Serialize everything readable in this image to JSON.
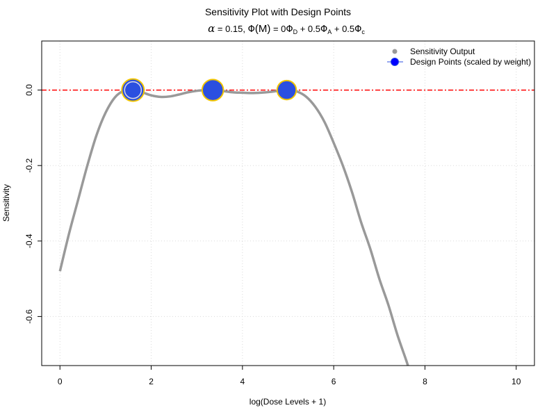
{
  "chart_data": {
    "type": "line",
    "title": "Sensitivity Plot with Design Points",
    "subtitle": {
      "alpha_symbol": "α",
      "alpha_value": " = 0.15, ",
      "phi": "Φ",
      "m_arg": "(M)",
      "eq": " = 0",
      "w_a": " + 0.5",
      "w_c": " + 0.5",
      "sub_d": "D",
      "sub_a": "A",
      "sub_c": "c"
    },
    "xlabel": "log(Dose Levels + 1)",
    "ylabel": "Sensitivity",
    "xlim": [
      -0.4,
      10.4
    ],
    "ylim": [
      -0.73,
      0.13
    ],
    "x_ticks": [
      0,
      2,
      4,
      6,
      8,
      10
    ],
    "x_tick_labels": [
      "0",
      "2",
      "4",
      "6",
      "8",
      "10"
    ],
    "y_ticks": [
      -0.6,
      -0.4,
      -0.2,
      0.0
    ],
    "y_tick_labels": [
      "-0.6",
      "-0.4",
      "-0.2",
      "0.0"
    ],
    "grid": true,
    "reference_line": {
      "y": 0,
      "color": "#ff0000",
      "style": "dashed"
    },
    "series": [
      {
        "name": "Sensitivity Output",
        "color": "#999999",
        "x": [
          0,
          0.2,
          0.4,
          0.6,
          0.8,
          1.0,
          1.2,
          1.4,
          1.6,
          1.8,
          2.0,
          2.2,
          2.4,
          2.6,
          2.8,
          3.0,
          3.2,
          3.4,
          3.6,
          3.8,
          4.0,
          4.2,
          4.4,
          4.6,
          4.8,
          5.0,
          5.2,
          5.4,
          5.6,
          5.8,
          6.0,
          6.2,
          6.4,
          6.6,
          6.8,
          7.0,
          7.2,
          7.4,
          7.6,
          7.7
        ],
        "y": [
          -0.48,
          -0.38,
          -0.29,
          -0.2,
          -0.12,
          -0.06,
          -0.02,
          -0.002,
          0.0,
          -0.006,
          -0.014,
          -0.018,
          -0.017,
          -0.012,
          -0.006,
          -0.002,
          0.0,
          -0.001,
          -0.003,
          -0.006,
          -0.007,
          -0.008,
          -0.007,
          -0.005,
          -0.002,
          0.0,
          -0.004,
          -0.018,
          -0.045,
          -0.085,
          -0.14,
          -0.2,
          -0.27,
          -0.35,
          -0.42,
          -0.5,
          -0.57,
          -0.65,
          -0.72,
          -0.76
        ]
      }
    ],
    "design_points": {
      "name": "Design Points (scaled by weight)",
      "fill": "#2b4fe0",
      "border": "#f2c500",
      "x": [
        1.6,
        3.35,
        4.97
      ],
      "y": [
        0.0,
        0.0,
        0.0
      ],
      "weight": [
        0.4,
        0.35,
        0.25
      ]
    },
    "legend_position": "top-right"
  }
}
